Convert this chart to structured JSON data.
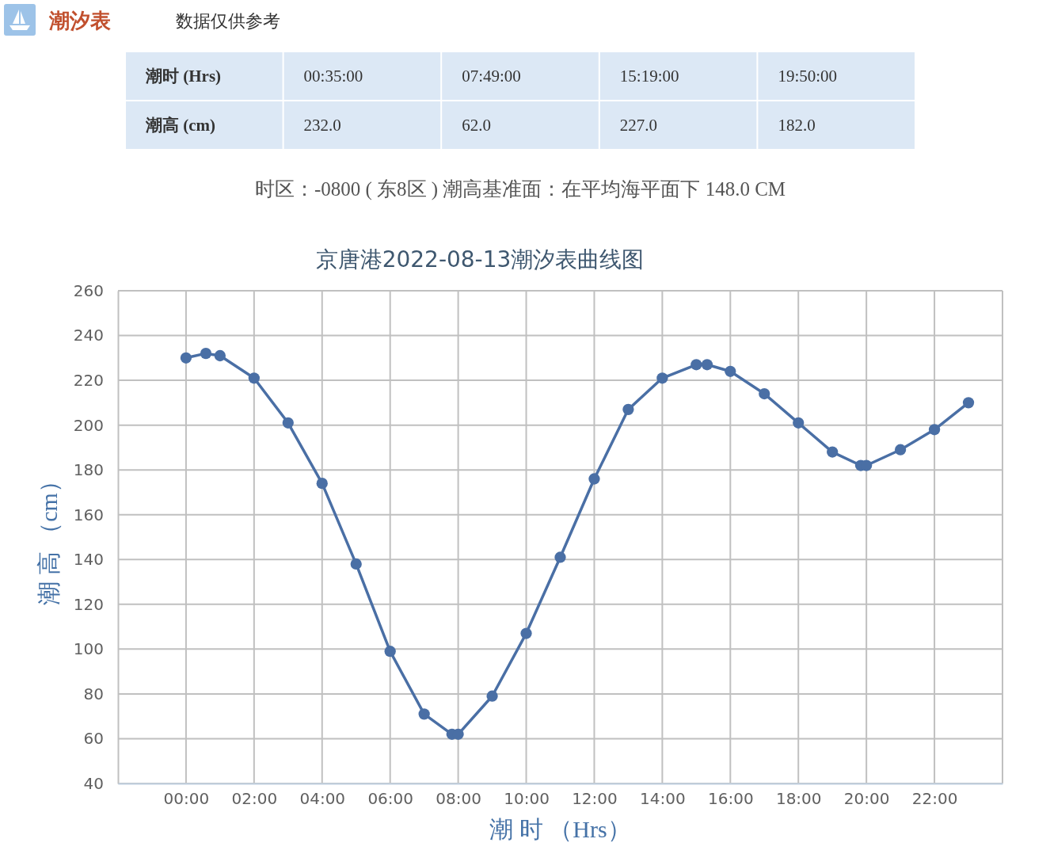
{
  "chart_data": [
    {
      "type": "other",
      "title": "潮汐表",
      "subtitle": "数据仅供参考",
      "annotations": [
        "潮时 (Hrs)",
        "00:35:00",
        "07:49:00",
        "15:19:00",
        "19:50:00",
        "潮高 (cm)",
        "232.0",
        "62.0",
        "227.0",
        "182.0",
        "时区：-0800 ( 东8区 ) 潮高基准面：在平均海平面下 148.0 CM"
      ]
    },
    {
      "type": "line",
      "title": "京唐港2022-08-13潮汐表曲线图",
      "xlabel": "潮 时 （Hrs）",
      "ylabel": "潮 高 （cm）",
      "x": [
        0,
        0.5833,
        1,
        2,
        3,
        4,
        5,
        6,
        7,
        7.8167,
        8,
        9,
        10,
        11,
        12,
        13,
        14,
        15,
        15.3167,
        16,
        17,
        18,
        19,
        19.8333,
        20,
        21,
        22,
        23
      ],
      "series": [
        {
          "color": "#4a6fa5",
          "values": [
            230,
            232,
            231,
            221,
            201,
            174,
            138,
            99,
            71,
            62,
            62,
            79,
            107,
            141,
            176,
            207,
            221,
            227,
            227,
            224,
            214,
            201,
            188,
            182,
            182,
            189,
            198,
            210
          ]
        }
      ],
      "xlim": [
        -2,
        24
      ],
      "xticks": [
        {
          "value": 0,
          "label": "00:00"
        },
        {
          "value": 2,
          "label": "02:00"
        },
        {
          "value": 4,
          "label": "04:00"
        },
        {
          "value": 6,
          "label": "06:00"
        },
        {
          "value": 8,
          "label": "08:00"
        },
        {
          "value": 10,
          "label": "10:00"
        },
        {
          "value": 12,
          "label": "12:00"
        },
        {
          "value": 14,
          "label": "14:00"
        },
        {
          "value": 16,
          "label": "16:00"
        },
        {
          "value": 18,
          "label": "18:00"
        },
        {
          "value": 20,
          "label": "20:00"
        },
        {
          "value": 22,
          "label": "22:00"
        }
      ],
      "ylim": [
        40,
        260
      ],
      "yticks": [
        40,
        60,
        80,
        100,
        120,
        140,
        160,
        180,
        200,
        220,
        240,
        260
      ],
      "grid": true,
      "marker": "circle"
    }
  ]
}
